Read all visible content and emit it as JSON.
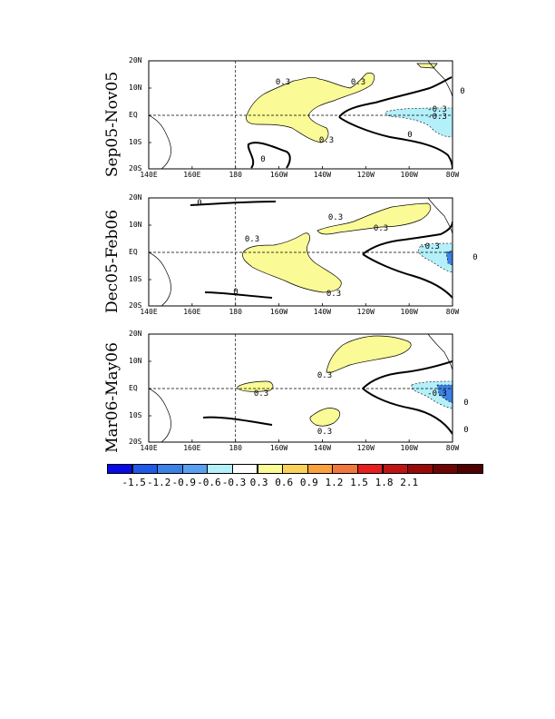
{
  "panels": [
    {
      "label": "Sep05-Nov05",
      "contours": [
        {
          "text": "0.3"
        },
        {
          "text": "0.3"
        },
        {
          "text": "0.3"
        },
        {
          "text": "-0.3"
        },
        {
          "text": "-0.3"
        },
        {
          "text": "0"
        },
        {
          "text": "0"
        },
        {
          "text": "0"
        }
      ]
    },
    {
      "label": "Dec05-Feb06",
      "contours": [
        {
          "text": "0.3"
        },
        {
          "text": "0.3"
        },
        {
          "text": "0.3"
        },
        {
          "text": "0.3"
        },
        {
          "text": "-0.3"
        },
        {
          "text": "0"
        },
        {
          "text": "0"
        },
        {
          "text": "0"
        }
      ]
    },
    {
      "label": "Mar06-May06",
      "contours": [
        {
          "text": "0.3"
        },
        {
          "text": "0.3"
        },
        {
          "text": "0.3"
        },
        {
          "text": "-0.3"
        },
        {
          "text": "0"
        },
        {
          "text": "0"
        }
      ]
    }
  ],
  "axes": {
    "lat_ticks": [
      "20N",
      "10N",
      "EQ",
      "10S",
      "20S"
    ],
    "lon_ticks": [
      "140E",
      "160E",
      "180",
      "160W",
      "140W",
      "120W",
      "100W",
      "80W"
    ]
  },
  "colorbar": {
    "colors": [
      "#0a0ae6",
      "#1e5ae6",
      "#3c82e6",
      "#5aa0f0",
      "#b4f0fa",
      "#ffffff",
      "#fafa96",
      "#fad25a",
      "#faa03c",
      "#f0783c",
      "#e61e1e",
      "#be1414",
      "#960a0a",
      "#6e0505",
      "#500000"
    ],
    "labels": [
      "-1.5",
      "-1.2",
      "-0.9",
      "-0.6",
      "-0.3",
      "0.3",
      "0.6",
      "0.9",
      "1.2",
      "1.5",
      "1.8",
      "2.1"
    ]
  },
  "colors": {
    "positive_fill": "#fafa96",
    "negative_fill_light": "#b4f0fa",
    "negative_fill_mid": "#5aa0f0",
    "negative_fill_dark": "#3c82e6"
  }
}
